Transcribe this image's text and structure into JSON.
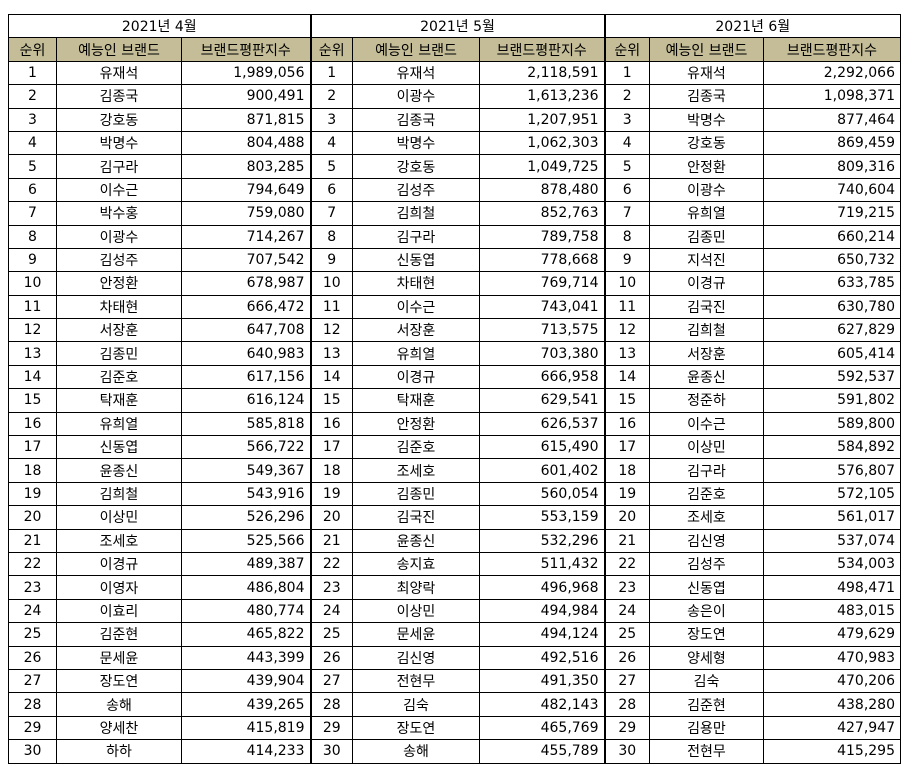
{
  "headers": {
    "rank": "순위",
    "name": "예능인 브랜드",
    "score": "브랜드평판지수"
  },
  "months": [
    {
      "title": "2021년 4월",
      "rows": [
        [
          "1",
          "유재석",
          "1,989,056"
        ],
        [
          "2",
          "김종국",
          "900,491"
        ],
        [
          "3",
          "강호동",
          "871,815"
        ],
        [
          "4",
          "박명수",
          "804,488"
        ],
        [
          "5",
          "김구라",
          "803,285"
        ],
        [
          "6",
          "이수근",
          "794,649"
        ],
        [
          "7",
          "박수홍",
          "759,080"
        ],
        [
          "8",
          "이광수",
          "714,267"
        ],
        [
          "9",
          "김성주",
          "707,542"
        ],
        [
          "10",
          "안정환",
          "678,987"
        ],
        [
          "11",
          "차태현",
          "666,472"
        ],
        [
          "12",
          "서장훈",
          "647,708"
        ],
        [
          "13",
          "김종민",
          "640,983"
        ],
        [
          "14",
          "김준호",
          "617,156"
        ],
        [
          "15",
          "탁재훈",
          "616,124"
        ],
        [
          "16",
          "유희열",
          "585,818"
        ],
        [
          "17",
          "신동엽",
          "566,722"
        ],
        [
          "18",
          "윤종신",
          "549,367"
        ],
        [
          "19",
          "김희철",
          "543,916"
        ],
        [
          "20",
          "이상민",
          "526,296"
        ],
        [
          "21",
          "조세호",
          "525,566"
        ],
        [
          "22",
          "이경규",
          "489,387"
        ],
        [
          "23",
          "이영자",
          "486,804"
        ],
        [
          "24",
          "이효리",
          "480,774"
        ],
        [
          "25",
          "김준현",
          "465,822"
        ],
        [
          "26",
          "문세윤",
          "443,399"
        ],
        [
          "27",
          "장도연",
          "439,904"
        ],
        [
          "28",
          "송해",
          "439,265"
        ],
        [
          "29",
          "양세찬",
          "415,819"
        ],
        [
          "30",
          "하하",
          "414,233"
        ]
      ]
    },
    {
      "title": "2021년 5월",
      "rows": [
        [
          "1",
          "유재석",
          "2,118,591"
        ],
        [
          "2",
          "이광수",
          "1,613,236"
        ],
        [
          "3",
          "김종국",
          "1,207,951"
        ],
        [
          "4",
          "박명수",
          "1,062,303"
        ],
        [
          "5",
          "강호동",
          "1,049,725"
        ],
        [
          "6",
          "김성주",
          "878,480"
        ],
        [
          "7",
          "김희철",
          "852,763"
        ],
        [
          "8",
          "김구라",
          "789,758"
        ],
        [
          "9",
          "신동엽",
          "778,668"
        ],
        [
          "10",
          "차태현",
          "769,714"
        ],
        [
          "11",
          "이수근",
          "743,041"
        ],
        [
          "12",
          "서장훈",
          "713,575"
        ],
        [
          "13",
          "유희열",
          "703,380"
        ],
        [
          "14",
          "이경규",
          "666,958"
        ],
        [
          "15",
          "탁재훈",
          "629,541"
        ],
        [
          "16",
          "안정환",
          "626,537"
        ],
        [
          "17",
          "김준호",
          "615,490"
        ],
        [
          "18",
          "조세호",
          "601,402"
        ],
        [
          "19",
          "김종민",
          "560,054"
        ],
        [
          "20",
          "김국진",
          "553,159"
        ],
        [
          "21",
          "윤종신",
          "532,296"
        ],
        [
          "22",
          "송지효",
          "511,432"
        ],
        [
          "23",
          "최양락",
          "496,968"
        ],
        [
          "24",
          "이상민",
          "494,984"
        ],
        [
          "25",
          "문세윤",
          "494,124"
        ],
        [
          "26",
          "김신영",
          "492,516"
        ],
        [
          "27",
          "전현무",
          "491,350"
        ],
        [
          "28",
          "김숙",
          "482,143"
        ],
        [
          "29",
          "장도연",
          "465,769"
        ],
        [
          "30",
          "송해",
          "455,789"
        ]
      ]
    },
    {
      "title": "2021년 6월",
      "rows": [
        [
          "1",
          "유재석",
          "2,292,066"
        ],
        [
          "2",
          "김종국",
          "1,098,371"
        ],
        [
          "3",
          "박명수",
          "877,464"
        ],
        [
          "4",
          "강호동",
          "869,459"
        ],
        [
          "5",
          "안정환",
          "809,316"
        ],
        [
          "6",
          "이광수",
          "740,604"
        ],
        [
          "7",
          "유희열",
          "719,215"
        ],
        [
          "8",
          "김종민",
          "660,214"
        ],
        [
          "9",
          "지석진",
          "650,732"
        ],
        [
          "10",
          "이경규",
          "633,785"
        ],
        [
          "11",
          "김국진",
          "630,780"
        ],
        [
          "12",
          "김희철",
          "627,829"
        ],
        [
          "13",
          "서장훈",
          "605,414"
        ],
        [
          "14",
          "윤종신",
          "592,537"
        ],
        [
          "15",
          "정준하",
          "591,802"
        ],
        [
          "16",
          "이수근",
          "589,800"
        ],
        [
          "17",
          "이상민",
          "584,892"
        ],
        [
          "18",
          "김구라",
          "576,807"
        ],
        [
          "19",
          "김준호",
          "572,105"
        ],
        [
          "20",
          "조세호",
          "561,017"
        ],
        [
          "21",
          "김신영",
          "537,074"
        ],
        [
          "22",
          "김성주",
          "534,003"
        ],
        [
          "23",
          "신동엽",
          "498,471"
        ],
        [
          "24",
          "송은이",
          "483,015"
        ],
        [
          "25",
          "장도연",
          "479,629"
        ],
        [
          "26",
          "양세형",
          "470,983"
        ],
        [
          "27",
          "김숙",
          "470,206"
        ],
        [
          "28",
          "김준현",
          "438,280"
        ],
        [
          "29",
          "김용만",
          "427,947"
        ],
        [
          "30",
          "전현무",
          "415,295"
        ]
      ]
    }
  ],
  "colors": {
    "header_bg": "#c4bd97"
  }
}
